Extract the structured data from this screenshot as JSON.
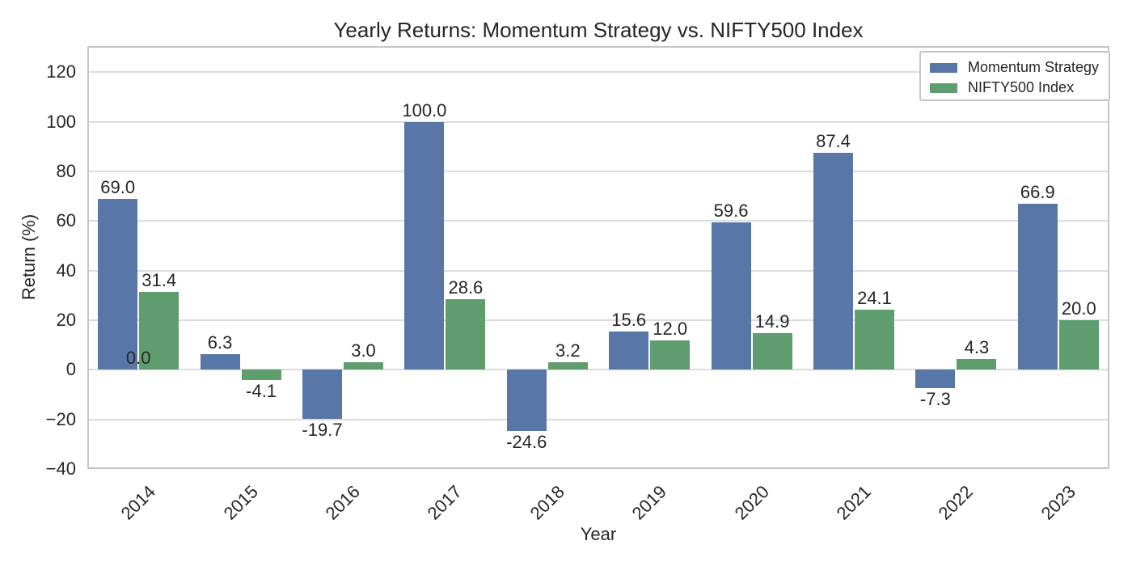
{
  "figure": {
    "title": "Yearly Returns: Momentum Strategy vs. NIFTY500 Index",
    "xlabel": "Year",
    "ylabel": "Return (%)"
  },
  "legend": {
    "position": "upper-right",
    "items": [
      {
        "label": "Momentum Strategy",
        "color": "#5876a7"
      },
      {
        "label": "NIFTY500 Index",
        "color": "#5e9e6e"
      }
    ]
  },
  "colors": {
    "momentum_bar": "#5876a7",
    "nifty_bar": "#5e9e6e",
    "gridline": "#dcdcdc",
    "axes_border": "#c6c6c6",
    "text": "#262626",
    "background": "#ffffff"
  },
  "chart_data": {
    "type": "bar",
    "title": "Yearly Returns: Momentum Strategy vs. NIFTY500 Index",
    "xlabel": "Year",
    "ylabel": "Return (%)",
    "categories": [
      "2014",
      "2015",
      "2016",
      "2017",
      "2018",
      "2019",
      "2020",
      "2021",
      "2022",
      "2023"
    ],
    "series": [
      {
        "name": "Momentum Strategy",
        "color": "#5876a7",
        "values": [
          69.0,
          6.3,
          -19.7,
          100.0,
          -24.6,
          15.6,
          59.6,
          87.4,
          -7.3,
          66.9
        ]
      },
      {
        "name": "NIFTY500 Index",
        "color": "#5e9e6e",
        "values": [
          31.4,
          -4.1,
          3.0,
          28.6,
          3.2,
          12.0,
          14.9,
          24.1,
          4.3,
          20.0
        ]
      }
    ],
    "bar_value_labels": true,
    "yticks": [
      -40,
      -20,
      0,
      20,
      40,
      60,
      80,
      100,
      120
    ],
    "ytick_labels": [
      "−40",
      "−20",
      "0",
      "20",
      "40",
      "60",
      "80",
      "100",
      "120"
    ],
    "ylim": [
      -40,
      130.6
    ],
    "grid": "horizontal",
    "legend_position": "upper right",
    "x_tick_rotation_deg": 45,
    "extra_labels": [
      {
        "category": "2014",
        "text": "0.0",
        "position": "baseline-center"
      }
    ]
  }
}
